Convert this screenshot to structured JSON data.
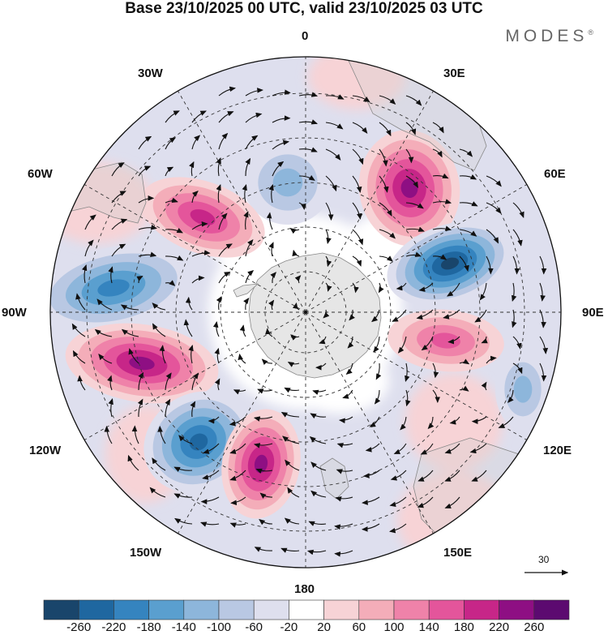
{
  "title": "Base 23/10/2025 00 UTC, valid 23/10/2025 03 UTC",
  "brand": "MODES",
  "brand_mark": "®",
  "lon_labels": {
    "n": "0",
    "ne30": "30E",
    "ne60": "60E",
    "e": "90E",
    "se120": "120E",
    "se150": "150E",
    "s": "180",
    "sw150": "150W",
    "sw120": "120W",
    "w": "90W",
    "nw60": "60W",
    "nw30": "30W"
  },
  "reference_vector": "30",
  "colorbar": {
    "ticks": [
      "-260",
      "-220",
      "-180",
      "-140",
      "-100",
      "-60",
      "-20",
      "20",
      "60",
      "100",
      "140",
      "180",
      "220",
      "260"
    ],
    "colors": [
      "#19456b",
      "#1f67a0",
      "#3584bf",
      "#5a9fcf",
      "#8db6db",
      "#b9c8e3",
      "#dedfee",
      "#ffffff",
      "#f7d3d6",
      "#f4adb9",
      "#ef82a9",
      "#e4559b",
      "#c72688",
      "#8e0f83",
      "#5c0a70"
    ]
  },
  "anomaly_centres": [
    {
      "name": "high-near-45e",
      "sign": "positive",
      "peak": "220"
    },
    {
      "name": "low-near-70e",
      "sign": "negative",
      "peak": "-260"
    },
    {
      "name": "high-near-95e",
      "sign": "positive",
      "peak": "140"
    },
    {
      "name": "low-near-115e",
      "sign": "negative",
      "peak": "-100"
    },
    {
      "name": "low-near-10w",
      "sign": "negative",
      "peak": "-100"
    },
    {
      "name": "high-near-55w",
      "sign": "positive",
      "peak": "180"
    },
    {
      "name": "low-near-85w",
      "sign": "negative",
      "peak": "-180"
    },
    {
      "name": "high-near-105w",
      "sign": "positive",
      "peak": "220"
    },
    {
      "name": "low-near-135w",
      "sign": "negative",
      "peak": "-220"
    },
    {
      "name": "high-near-165w",
      "sign": "positive",
      "peak": "220"
    }
  ]
}
